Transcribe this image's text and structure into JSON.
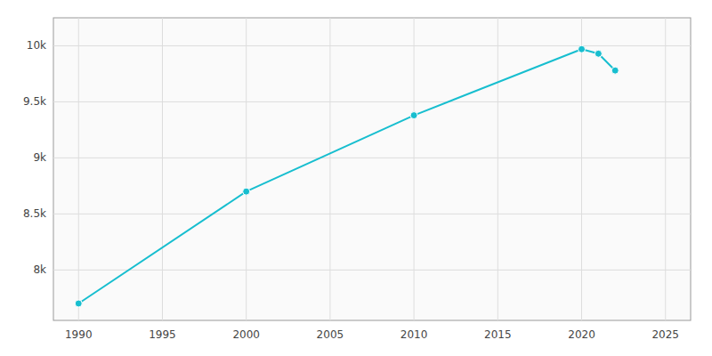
{
  "chart_data": {
    "type": "line",
    "x": [
      1990,
      2000,
      2010,
      2020,
      2021,
      2022
    ],
    "values": [
      7701,
      8700,
      9380,
      9970,
      9930,
      9780
    ],
    "color": "#17becf",
    "marker": "circle",
    "xlim": [
      1988.5,
      2026.5
    ],
    "ylim": [
      7550,
      10250
    ],
    "xticks": [
      1990,
      1995,
      2000,
      2005,
      2010,
      2015,
      2020,
      2025
    ],
    "yticks": [
      {
        "value": 8000,
        "label": "8k"
      },
      {
        "value": 8500,
        "label": "8.5k"
      },
      {
        "value": 9000,
        "label": "9k"
      },
      {
        "value": 9500,
        "label": "9.5k"
      },
      {
        "value": 10000,
        "label": "10k"
      }
    ],
    "grid": true
  }
}
